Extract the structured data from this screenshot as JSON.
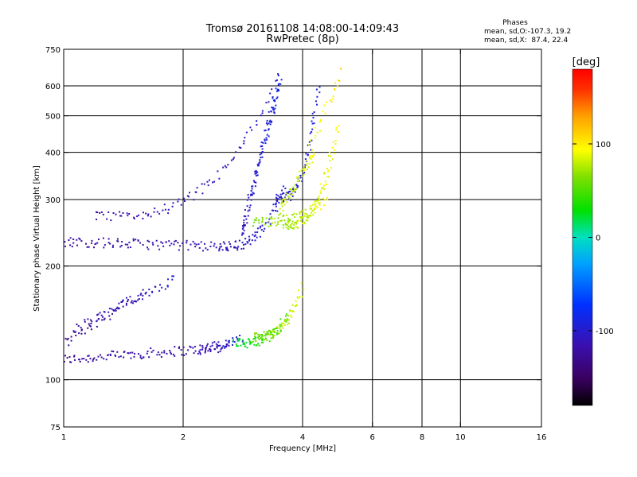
{
  "chart_data": {
    "type": "scatter",
    "title": "Tromsø 20161108 14:08:00-14:09:43",
    "subtitle": "RwPretec (8p)",
    "xlabel": "Frequency [MHz]",
    "ylabel": "Stationary phase Virtual Height [km]",
    "x_scale": "log",
    "y_scale": "log",
    "xlim": [
      1,
      16
    ],
    "ylim": [
      75,
      750
    ],
    "x_gridlines": [
      2,
      4,
      6,
      8,
      10
    ],
    "y_gridlines": [
      100,
      200,
      300,
      400,
      500,
      600
    ],
    "x_tick_labels": [
      "1",
      "2",
      "4",
      "6",
      "8",
      "10",
      "16"
    ],
    "y_tick_labels": [
      "75",
      "100",
      "200",
      "300",
      "400",
      "500",
      "600",
      "750"
    ],
    "grid": true,
    "stats": {
      "title": "Phases",
      "line_o": "mean, sd,O:-107.3, 19.2",
      "line_x": "mean, sd,X:  87.4, 22.4"
    },
    "colorbar": {
      "label": "[deg]",
      "range": [
        -180,
        180
      ],
      "ticks": [
        100,
        0,
        -100
      ],
      "tick_labels": [
        "100",
        "0",
        "-100"
      ],
      "colormap": "rainbow (black-purple-blue-cyan-green-yellow-orange-red)"
    },
    "series": [
      {
        "name": "",
        "segments": [
          {
            "f0": 1.0,
            "f1": 2.6,
            "h0": 113,
            "h1": 122,
            "p0": -125,
            "p1": -115,
            "n": 110,
            "curve": "lin"
          },
          {
            "f0": 2.2,
            "f1": 2.8,
            "h0": 120,
            "h1": 128,
            "p0": -115,
            "p1": -95,
            "n": 40,
            "curve": "lin"
          },
          {
            "f0": 2.7,
            "f1": 3.7,
            "h0": 125,
            "h1": 150,
            "p0": 20,
            "p1": 55,
            "n": 80,
            "curve": "exp"
          },
          {
            "f0": 3.0,
            "f1": 4.0,
            "h0": 130,
            "h1": 175,
            "p0": 60,
            "p1": 90,
            "n": 70,
            "curve": "exp"
          },
          {
            "f0": 1.0,
            "f1": 1.6,
            "h0": 125,
            "h1": 170,
            "p0": -130,
            "p1": -118,
            "n": 45,
            "curve": "lin"
          },
          {
            "f0": 1.05,
            "f1": 1.9,
            "h0": 135,
            "h1": 185,
            "p0": -120,
            "p1": -95,
            "n": 60,
            "curve": "lin"
          }
        ]
      },
      {
        "name": "",
        "segments": [
          {
            "f0": 1.0,
            "f1": 2.6,
            "h0": 232,
            "h1": 225,
            "p0": -120,
            "p1": -110,
            "n": 100,
            "curve": "lin"
          },
          {
            "f0": 2.5,
            "f1": 3.6,
            "h0": 226,
            "h1": 330,
            "p0": -110,
            "p1": -95,
            "n": 70,
            "curve": "exp"
          },
          {
            "f0": 3.4,
            "f1": 4.4,
            "h0": 300,
            "h1": 600,
            "p0": -100,
            "p1": -90,
            "n": 80,
            "curve": "exp"
          },
          {
            "f0": 2.8,
            "f1": 3.5,
            "h0": 240,
            "h1": 620,
            "p0": -108,
            "p1": -88,
            "n": 120,
            "curve": "lin"
          },
          {
            "f0": 1.2,
            "f1": 3.5,
            "h0": 270,
            "h1": 640,
            "p0": -120,
            "p1": -100,
            "n": 90,
            "curve": "exp"
          }
        ]
      },
      {
        "name": "",
        "segments": [
          {
            "f0": 3.0,
            "f1": 4.6,
            "h0": 262,
            "h1": 300,
            "p0": 60,
            "p1": 90,
            "n": 70,
            "curve": "exp"
          },
          {
            "f0": 3.6,
            "f1": 4.9,
            "h0": 258,
            "h1": 470,
            "p0": 70,
            "p1": 95,
            "n": 100,
            "curve": "exp"
          },
          {
            "f0": 3.5,
            "f1": 4.3,
            "h0": 280,
            "h1": 400,
            "p0": 75,
            "p1": 90,
            "n": 60,
            "curve": "lin"
          },
          {
            "f0": 4.2,
            "f1": 5.0,
            "h0": 420,
            "h1": 650,
            "p0": 85,
            "p1": 110,
            "n": 25,
            "curve": "lin"
          }
        ]
      }
    ]
  }
}
